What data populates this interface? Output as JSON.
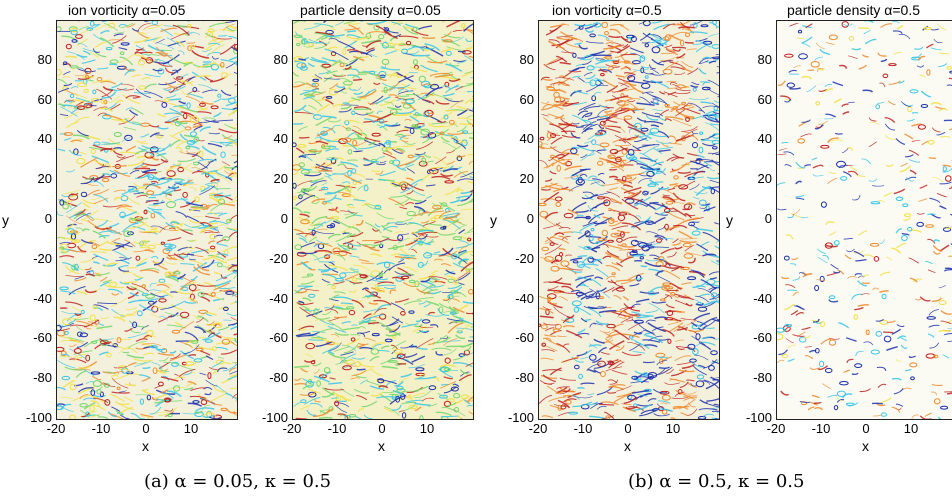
{
  "panels": [
    {
      "title": "ion vorticity α=0.05",
      "field": "vorticity",
      "stripes": false
    },
    {
      "title": "particle density α=0.05",
      "field": "density",
      "stripes": false
    },
    {
      "title": "ion vorticity α=0.5",
      "field": "vorticity",
      "stripes": true
    },
    {
      "title": "particle density α=0.5",
      "field": "density-sparse",
      "stripes": false
    }
  ],
  "axes": {
    "xlabel": "x",
    "ylabel": "y",
    "yticks": [
      "80",
      "60",
      "40",
      "20",
      "0",
      "-20",
      "-40",
      "-60",
      "-80",
      "-100"
    ],
    "xticks": [
      "-20",
      "-10",
      "0",
      "10"
    ]
  },
  "captions": {
    "a": "(a) α = 0.05, κ = 0.5",
    "b": "(b) α = 0.5, κ = 0.5"
  },
  "colors": {
    "blue": "#1a2fb0",
    "cyan": "#36c6e8",
    "green": "#6fd66a",
    "yellow": "#f2e046",
    "orange": "#f08a2c",
    "red": "#c01e1e"
  }
}
